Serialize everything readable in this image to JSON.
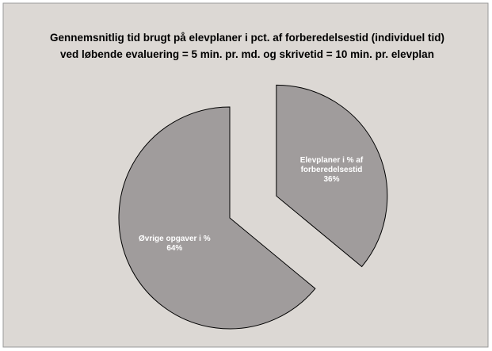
{
  "chart_data": {
    "type": "pie",
    "title": [
      "Gennemsnitlig tid brugt på elevplaner i pct. af forberedelsestid (individuel tid)",
      "ved løbende evaluering = 5 min. pr. md. og skrivetid = 10 min. pr. elevplan"
    ],
    "categories": [
      "Elevplaner i % af forberedelsestid",
      "Øvrige opgaver i %"
    ],
    "values": [
      36,
      64
    ],
    "value_labels": [
      "36%",
      "64%"
    ],
    "colors": [
      "#a09c9c",
      "#a09c9c"
    ],
    "exploded": [
      true,
      false
    ]
  }
}
